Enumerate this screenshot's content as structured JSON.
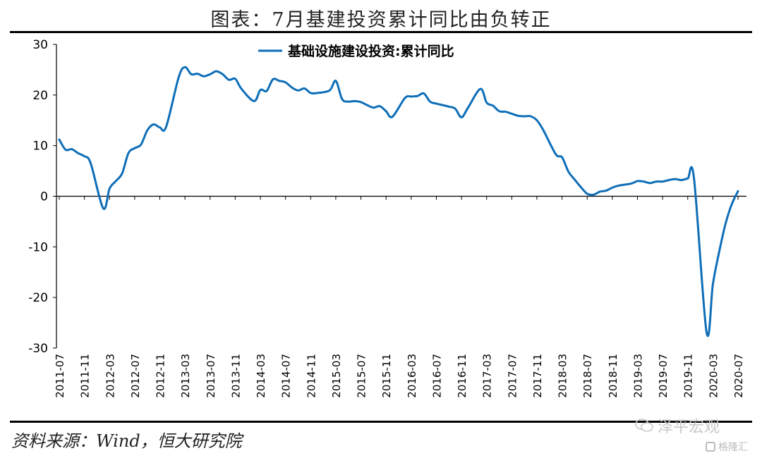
{
  "header": {
    "title": "图表：7月基建投资累计同比由负转正"
  },
  "footer": {
    "source": "资料来源：Wind，恒大研究院"
  },
  "watermark": {
    "primary": "泽平宏观",
    "secondary": "格隆汇"
  },
  "chart_data": {
    "type": "line",
    "title": "",
    "xlabel": "",
    "ylabel": "",
    "ylim": [
      -30,
      30
    ],
    "yticks": [
      30,
      20,
      10,
      0,
      -10,
      -20,
      -30
    ],
    "grid": false,
    "legend_position": "top-center",
    "x_tick_labels": [
      "2011-07",
      "2011-11",
      "2012-03",
      "2012-07",
      "2012-11",
      "2013-03",
      "2013-07",
      "2013-11",
      "2014-03",
      "2014-07",
      "2014-11",
      "2015-03",
      "2015-07",
      "2015-11",
      "2016-03",
      "2016-07",
      "2016-11",
      "2017-03",
      "2017-07",
      "2017-11",
      "2018-03",
      "2018-07",
      "2018-11",
      "2019-03",
      "2019-07",
      "2019-11",
      "2020-03",
      "2020-07"
    ],
    "x": [
      "2011-07",
      "2011-08",
      "2011-09",
      "2011-10",
      "2011-11",
      "2011-12",
      "2012-02",
      "2012-03",
      "2012-04",
      "2012-05",
      "2012-06",
      "2012-07",
      "2012-08",
      "2012-09",
      "2012-10",
      "2012-11",
      "2012-12",
      "2013-02",
      "2013-03",
      "2013-04",
      "2013-05",
      "2013-06",
      "2013-07",
      "2013-08",
      "2013-09",
      "2013-10",
      "2013-11",
      "2013-12",
      "2014-02",
      "2014-03",
      "2014-04",
      "2014-05",
      "2014-06",
      "2014-07",
      "2014-08",
      "2014-09",
      "2014-10",
      "2014-11",
      "2014-12",
      "2015-02",
      "2015-03",
      "2015-04",
      "2015-05",
      "2015-06",
      "2015-07",
      "2015-08",
      "2015-09",
      "2015-10",
      "2015-11",
      "2015-12",
      "2016-02",
      "2016-03",
      "2016-04",
      "2016-05",
      "2016-06",
      "2016-07",
      "2016-08",
      "2016-09",
      "2016-10",
      "2016-11",
      "2016-12",
      "2017-02",
      "2017-03",
      "2017-04",
      "2017-05",
      "2017-06",
      "2017-07",
      "2017-08",
      "2017-09",
      "2017-10",
      "2017-11",
      "2017-12",
      "2018-02",
      "2018-03",
      "2018-04",
      "2018-05",
      "2018-06",
      "2018-07",
      "2018-08",
      "2018-09",
      "2018-10",
      "2018-11",
      "2018-12",
      "2019-02",
      "2019-03",
      "2019-04",
      "2019-05",
      "2019-06",
      "2019-07",
      "2019-08",
      "2019-09",
      "2019-10",
      "2019-11",
      "2019-12",
      "2020-02",
      "2020-03",
      "2020-04",
      "2020-05",
      "2020-06",
      "2020-07"
    ],
    "series": [
      {
        "name": "基础设施建设投资:累计同比",
        "color": "#0E6EB8",
        "values": [
          11.2,
          9.2,
          9.3,
          8.5,
          7.9,
          6.5,
          -2.4,
          1.5,
          3.0,
          4.5,
          8.5,
          9.5,
          10.2,
          13.0,
          14.2,
          13.6,
          13.7,
          23.5,
          25.5,
          24.1,
          24.2,
          23.7,
          24.1,
          24.7,
          24.1,
          23.0,
          23.2,
          21.2,
          18.8,
          21.0,
          20.8,
          23.1,
          22.8,
          22.5,
          21.5,
          20.9,
          21.3,
          20.4,
          20.4,
          20.9,
          22.8,
          19.2,
          18.7,
          18.8,
          18.6,
          18.0,
          17.5,
          17.8,
          16.8,
          15.7,
          19.4,
          19.7,
          19.8,
          20.3,
          18.7,
          18.3,
          18.0,
          17.7,
          17.3,
          15.6,
          17.4,
          21.2,
          18.5,
          17.9,
          16.8,
          16.7,
          16.3,
          15.9,
          15.8,
          15.8,
          15.0,
          13.1,
          8.3,
          7.7,
          4.9,
          3.3,
          1.8,
          0.5,
          0.3,
          0.9,
          1.1,
          1.7,
          2.1,
          2.5,
          3.0,
          2.9,
          2.6,
          2.9,
          2.9,
          3.2,
          3.4,
          3.2,
          3.5,
          3.5,
          -26.9,
          -17.4,
          -11.0,
          -5.5,
          -1.6,
          1.0
        ]
      }
    ]
  }
}
